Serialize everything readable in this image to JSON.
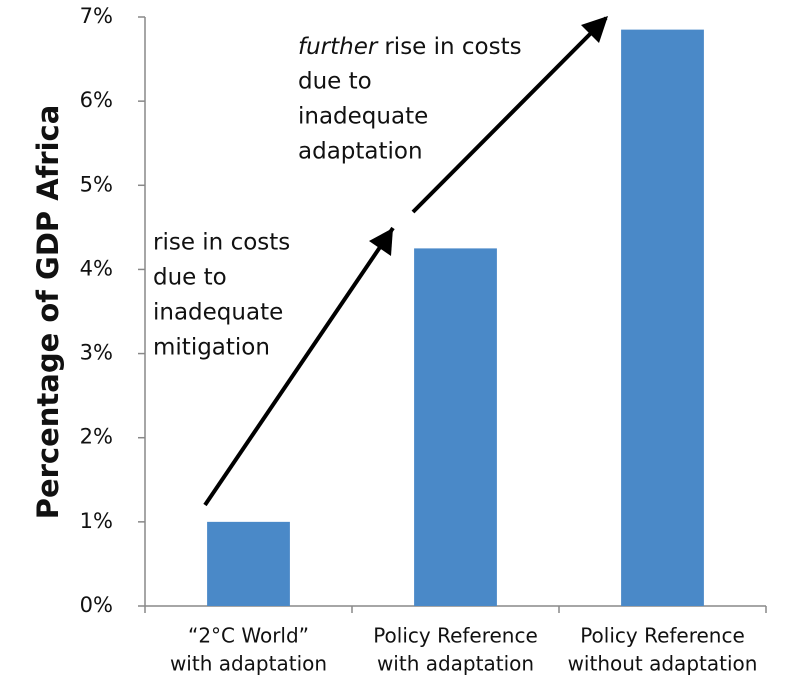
{
  "chart_data": {
    "type": "bar",
    "y_axis_label": "Percentage of GDP Africa",
    "categories": [
      [
        "“2°C World”",
        "with adaptation"
      ],
      [
        "Policy Reference",
        "with adaptation"
      ],
      [
        "Policy Reference",
        "without adaptation"
      ]
    ],
    "values": [
      1.0,
      4.25,
      6.85
    ],
    "color": "#4a89c8",
    "ylim": [
      0,
      7
    ],
    "yticks": [
      {
        "value": 0,
        "label": "0%"
      },
      {
        "value": 1,
        "label": "1%"
      },
      {
        "value": 2,
        "label": "2%"
      },
      {
        "value": 3,
        "label": "3%"
      },
      {
        "value": 4,
        "label": "4%"
      },
      {
        "value": 5,
        "label": "5%"
      },
      {
        "value": 6,
        "label": "6%"
      },
      {
        "value": 7,
        "label": "7%"
      }
    ],
    "grid": false,
    "annotations": [
      {
        "lines": [
          "rise in costs",
          "due to",
          "inadequate",
          "mitigation"
        ]
      },
      {
        "emphasis": "further",
        "lines": [
          "rise in costs",
          "due to",
          "inadequate",
          "adaptation"
        ]
      }
    ]
  }
}
